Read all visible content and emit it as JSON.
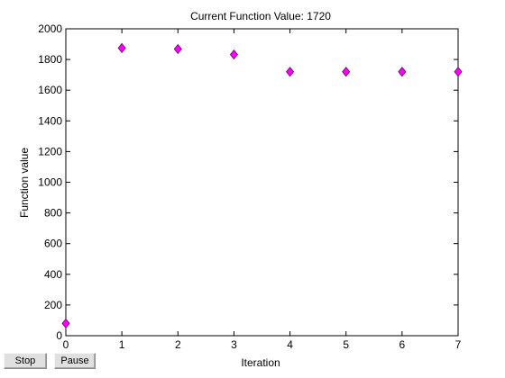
{
  "figure": {
    "title": "Current Function Value: 1720"
  },
  "controls": {
    "stop_label": "Stop",
    "pause_label": "Pause"
  },
  "colors": {
    "marker_fill": "#ff00ff",
    "marker_stroke": "#6a006a",
    "axis": "#000000",
    "button_face": "#e0e0e0"
  },
  "chart_data": {
    "type": "scatter",
    "title": "Current Function Value: 1720",
    "xlabel": "Iteration",
    "ylabel": "Function value",
    "xlim": [
      0,
      7
    ],
    "ylim": [
      0,
      2000
    ],
    "xticks": [
      0,
      1,
      2,
      3,
      4,
      5,
      6,
      7
    ],
    "yticks": [
      0,
      200,
      400,
      600,
      800,
      1000,
      1200,
      1400,
      1600,
      1800,
      2000
    ],
    "grid": false,
    "marker": "diamond",
    "series": [
      {
        "x": [
          0,
          1,
          2,
          3,
          4,
          5,
          6,
          7
        ],
        "y": [
          80,
          1875,
          1868,
          1832,
          1720,
          1720,
          1720,
          1720
        ]
      }
    ]
  }
}
